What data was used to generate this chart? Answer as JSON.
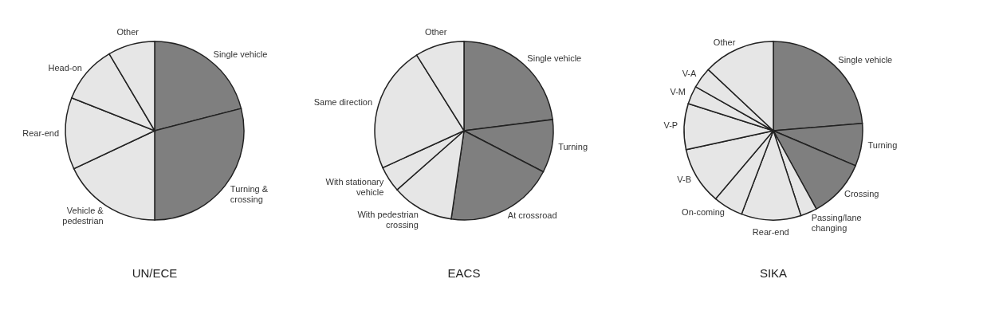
{
  "chart_data": [
    {
      "type": "pie",
      "title": "UN/ECE",
      "categories": [
        "Single vehicle",
        "Turning & crossing",
        "Vehicle & pedestrian",
        "Rear-end",
        "Head-on",
        "Other"
      ],
      "values": [
        21,
        29,
        18,
        13,
        10.5,
        8.5
      ],
      "colors": [
        "#7f7f7f",
        "#7f7f7f",
        "#e6e6e6",
        "#e6e6e6",
        "#e6e6e6",
        "#e6e6e6"
      ]
    },
    {
      "type": "pie",
      "title": "EACS",
      "categories": [
        "Single vehicle",
        "Turning",
        "At crossroad",
        "With pedestrian crossing",
        "With stationary vehicle",
        "Same direction",
        "Other"
      ],
      "values": [
        23,
        9.6,
        19.7,
        11.2,
        4.7,
        22.9,
        8.9
      ],
      "colors": [
        "#7f7f7f",
        "#7f7f7f",
        "#7f7f7f",
        "#e6e6e6",
        "#e6e6e6",
        "#e6e6e6",
        "#e6e6e6"
      ]
    },
    {
      "type": "pie",
      "title": "SIKA",
      "categories": [
        "Single vehicle",
        "Turning",
        "Crossing",
        "Passing/lane changing",
        "Rear-end",
        "On-coming",
        "V-B",
        "V-P",
        "V-M",
        "V-A",
        "Other"
      ],
      "values": [
        23.7,
        7.7,
        10.6,
        3.0,
        10.8,
        5.4,
        10.4,
        8.3,
        3.3,
        3.8,
        13.0
      ],
      "colors": [
        "#7f7f7f",
        "#7f7f7f",
        "#7f7f7f",
        "#e6e6e6",
        "#e6e6e6",
        "#e6e6e6",
        "#e6e6e6",
        "#e6e6e6",
        "#e6e6e6",
        "#e6e6e6",
        "#e6e6e6"
      ]
    }
  ]
}
